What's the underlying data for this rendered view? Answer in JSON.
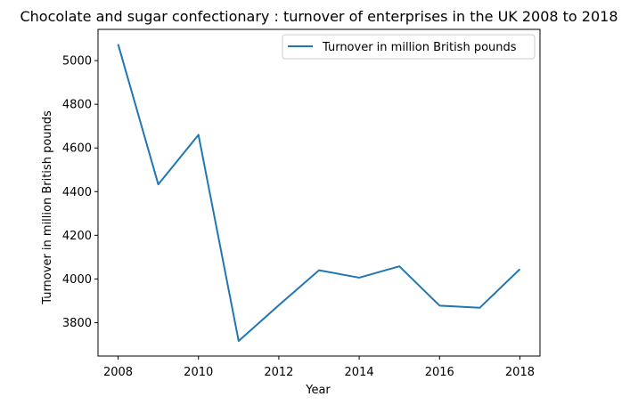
{
  "chart_data": {
    "type": "line",
    "title": "Chocolate and sugar confectionary : turnover of enterprises in the UK 2008 to 2018",
    "xlabel": "Year",
    "ylabel": "Turnover in million British pounds",
    "x": [
      2008,
      2009,
      2010,
      2011,
      2012,
      2013,
      2014,
      2015,
      2016,
      2017,
      2018
    ],
    "series": [
      {
        "name": "Turnover in million British pounds",
        "color": "#1f77b4",
        "values": [
          5075,
          4433,
          4660,
          3716,
          3880,
          4040,
          4006,
          4058,
          3878,
          3868,
          4045
        ]
      }
    ],
    "xlim": [
      2007.5,
      2018.5
    ],
    "ylim": [
      3647,
      5143
    ],
    "xticks": [
      2008,
      2010,
      2012,
      2014,
      2016,
      2018
    ],
    "yticks": [
      3800,
      4000,
      4200,
      4400,
      4600,
      4800,
      5000
    ],
    "grid": false,
    "legend_position": "top-right"
  }
}
